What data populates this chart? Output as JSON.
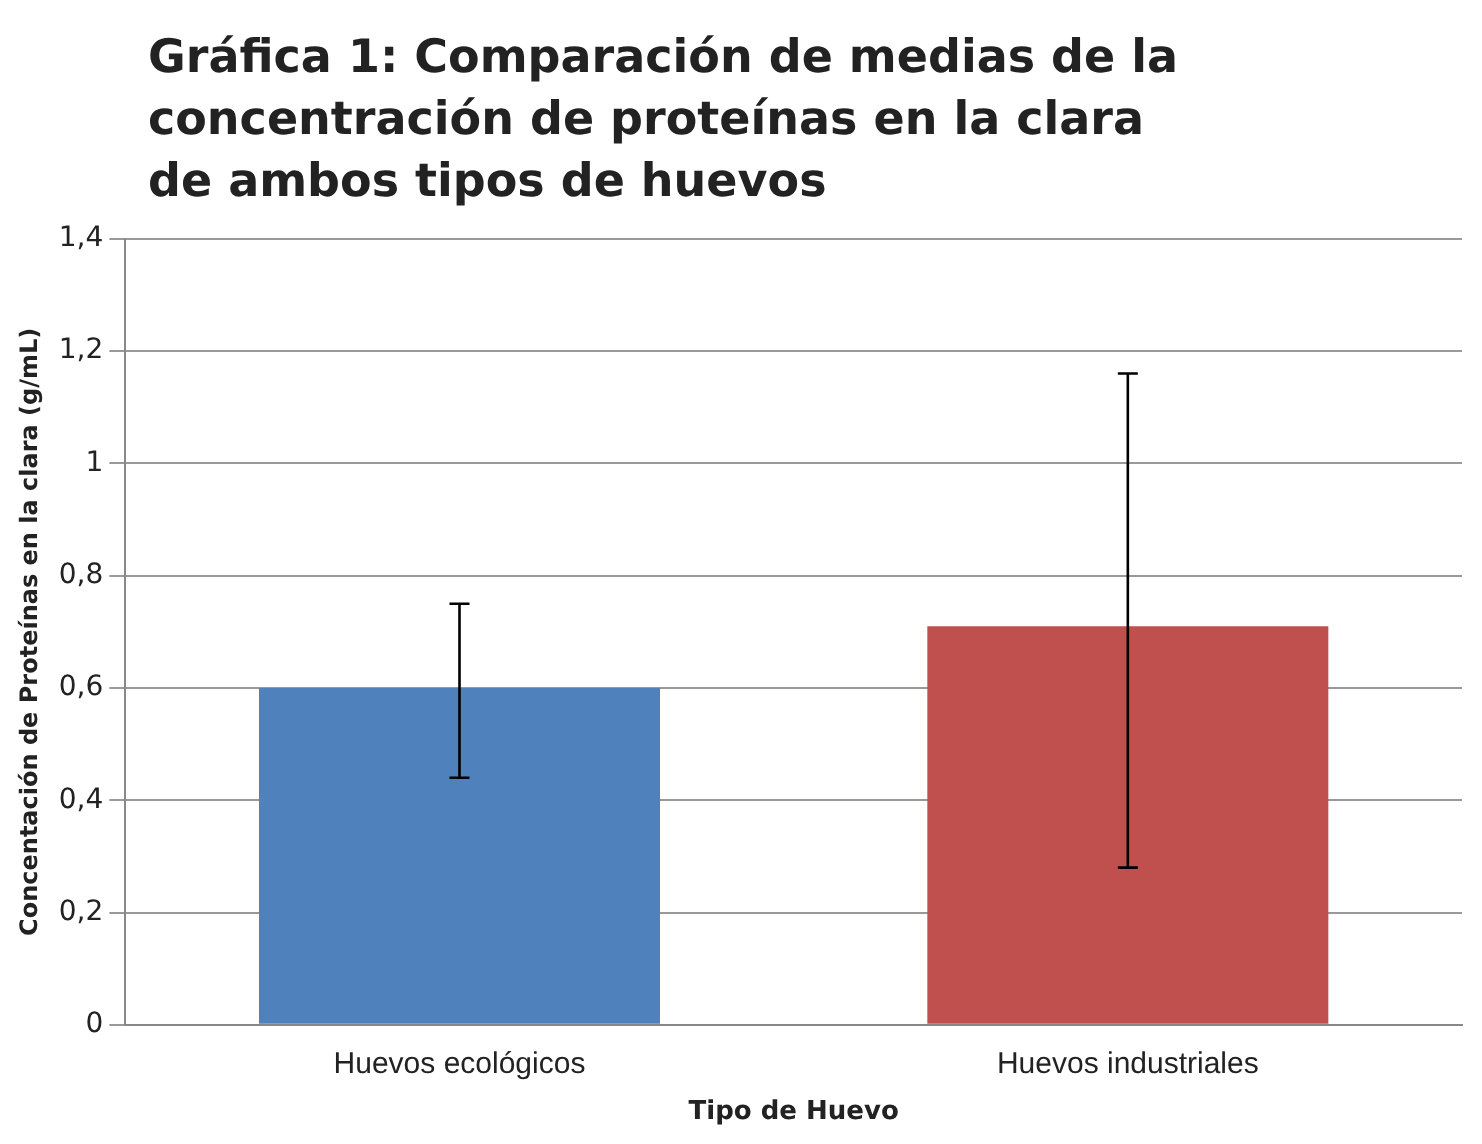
{
  "chart_data": {
    "type": "bar",
    "title": "Gráfica 1: Comparación de medias de la concentración de proteínas en la clara de ambos tipos de huevos",
    "xlabel": "Tipo de Huevo",
    "ylabel": "Concentación de Proteínas en la clara (g/mL)",
    "categories": [
      "Huevos ecológicos",
      "Huevos industriales"
    ],
    "values": [
      0.6,
      0.71
    ],
    "colors": [
      "#4f81bd",
      "#c0504d"
    ],
    "errors": [
      [
        0.44,
        0.75
      ],
      [
        0.28,
        1.16
      ]
    ],
    "ylim": [
      0,
      1.4
    ],
    "yticks": [
      0,
      {
        "value": 0.2,
        "label": "0,2"
      },
      {
        "value": 0.4,
        "label": "0,4"
      },
      {
        "value": 0.6,
        "label": "0,6"
      },
      {
        "value": 0.8,
        "label": "0,8"
      },
      1,
      {
        "value": 1.2,
        "label": "1,2"
      },
      {
        "value": 1.4,
        "label": "1,4"
      }
    ],
    "grid": "y"
  }
}
